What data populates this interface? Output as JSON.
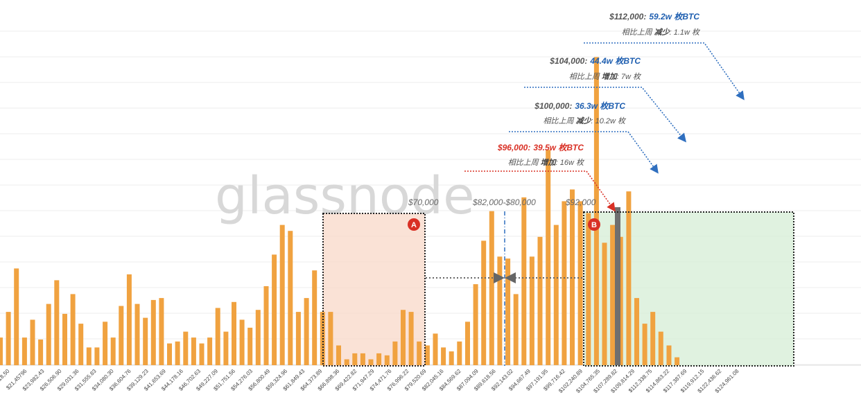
{
  "chart_data": {
    "type": "bar",
    "watermark": "glassnode",
    "colors": {
      "bar": "#f0a240",
      "highlight_bar": "#6f6f6f",
      "grid": "#eeeeee",
      "zone_a": "#f8d8c8",
      "zone_b": "#d8efd8",
      "red": "#d93025",
      "blue": "#1f5fb0"
    },
    "x_tick_labels": [
      "$18,50",
      "$21,45796",
      "$23,982.43",
      "$26,506.90",
      "$29,031.36",
      "$31,555.83",
      "$34,080.30",
      "$36,604.76",
      "$39,129.23",
      "$41,653.69",
      "$44,178.16",
      "$46,702.63",
      "$49,227.09",
      "$51,751.56",
      "$54,276.03",
      "$56,800.49",
      "$59,324.96",
      "$61,849.43",
      "$64,373.89",
      "$66,898.36",
      "$69,422.82",
      "$71,947.29",
      "$74,471.76",
      "$76,996.22",
      "$79,520.69",
      "$82,045.16",
      "$84,569.62",
      "$87,094.09",
      "$89,618.56",
      "$92,143.02",
      "$94,667.49",
      "$97,191.95",
      "$99,716.42",
      "$102,240.89",
      "$104,765.35",
      "$107,289.82",
      "$109,814.29",
      "$112,338.75",
      "$114,863.22",
      "$117,387.69",
      "$119,912.15",
      "$122,436.62",
      "$124,961.08"
    ],
    "values": [
      14,
      27,
      49,
      14,
      23,
      13,
      31,
      43,
      26,
      36,
      21,
      9,
      9,
      22,
      14,
      30,
      46,
      31,
      24,
      33,
      34,
      11,
      12,
      17,
      14,
      11,
      14,
      29,
      17,
      32,
      23,
      19,
      28,
      40,
      56,
      71,
      68,
      27,
      34,
      48,
      27,
      27,
      10,
      3,
      6,
      6,
      3,
      6,
      5,
      12,
      28,
      27,
      12,
      10,
      16,
      9,
      7,
      12,
      22,
      41,
      63,
      78,
      55,
      54,
      36,
      85,
      55,
      65,
      109,
      71,
      83,
      89,
      83,
      77,
      156,
      62,
      71,
      65,
      88,
      34,
      21,
      27,
      17,
      10,
      4
    ],
    "highlight_value": 80,
    "annotations": [
      {
        "price": "$112,000:",
        "amount": "59.2w 枚BTC",
        "sub_prefix": "相比上周",
        "sub_dir": "减少",
        "sub_rest": ": 1.1w 枚"
      },
      {
        "price": "$104,000:",
        "amount": "44.4w 枚BTC",
        "sub_prefix": "相比上周",
        "sub_dir": "增加",
        "sub_rest": ": 7w 枚"
      },
      {
        "price": "$100,000:",
        "amount": "36.3w 枚BTC",
        "sub_prefix": "相比上周",
        "sub_dir": "减少",
        "sub_rest": ": 10.2w 枚"
      },
      {
        "price": "$96,000:",
        "amount": "39.5w 枚BTC",
        "sub_prefix": "相比上周",
        "sub_dir": "增加",
        "sub_rest": ": 16w 枚"
      }
    ],
    "price_tags": {
      "p70": "$70,000",
      "p82": "$82,000-$80,000",
      "p92": "$92,000"
    },
    "zones": {
      "a": "A",
      "b": "B"
    }
  }
}
